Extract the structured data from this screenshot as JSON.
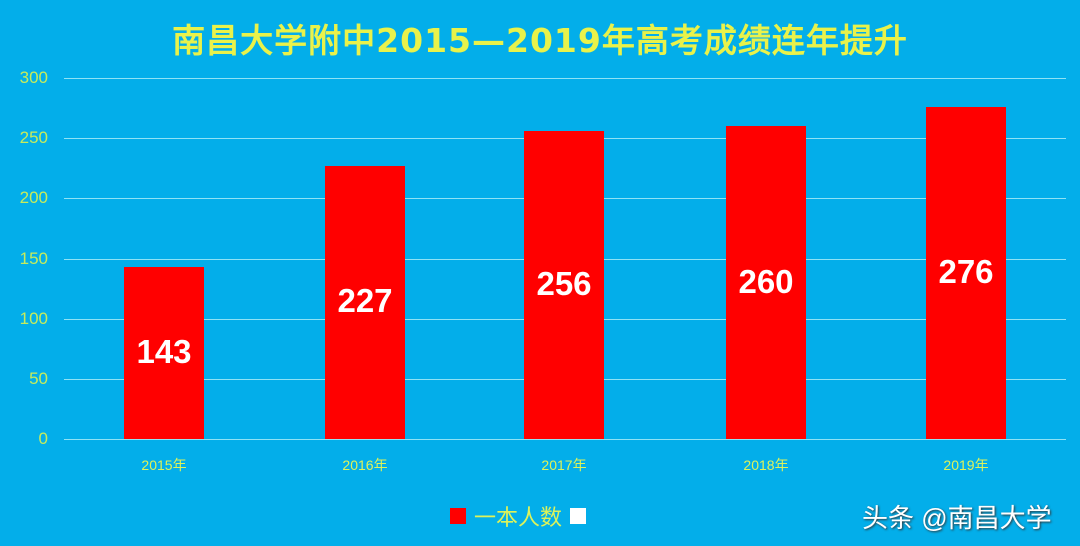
{
  "chart_data": {
    "type": "bar",
    "title": "南昌大学附中2015—2019年高考成绩连年提升",
    "categories": [
      "2015年",
      "2016年",
      "2017年",
      "2018年",
      "2019年"
    ],
    "series": [
      {
        "name": "一本人数",
        "values": [
          143,
          227,
          256,
          260,
          276
        ],
        "color": "#FF0000"
      }
    ],
    "xlabel": "",
    "ylabel": "",
    "ylim": [
      0,
      300
    ],
    "yticks": [
      0,
      50,
      100,
      150,
      200,
      250,
      300
    ],
    "grid": true,
    "legend_position": "bottom",
    "data_labels": true
  },
  "legend": {
    "items": [
      {
        "label": "一本人数",
        "color": "#FF0000"
      },
      {
        "label": "",
        "color": "#FFFFFF"
      }
    ]
  },
  "watermark": "头条 @南昌大学",
  "colors": {
    "background": "#03AEEA",
    "title": "#E9F24A",
    "bar": "#FF0000",
    "gridline": "#8FE3F5"
  }
}
